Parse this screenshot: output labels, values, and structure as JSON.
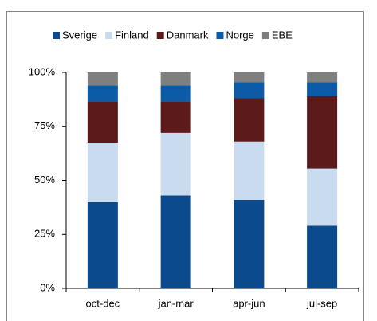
{
  "chart_data": {
    "type": "stacked_bar",
    "categories": [
      "oct-dec",
      "jan-mar",
      "apr-jun",
      "jul-sep"
    ],
    "series": [
      {
        "name": "Sverige",
        "color": "#0b4a8c",
        "values": [
          40,
          43,
          41,
          29
        ]
      },
      {
        "name": "Finland",
        "color": "#c9dcef",
        "values": [
          27.5,
          29,
          27,
          26.5
        ]
      },
      {
        "name": "Danmark",
        "color": "#5c1a1a",
        "values": [
          19,
          14.5,
          20,
          33.5
        ]
      },
      {
        "name": "Norge",
        "color": "#0c5ba8",
        "values": [
          7.5,
          7.5,
          7.5,
          6.5
        ]
      },
      {
        "name": "EBE",
        "color": "#7f7f7f",
        "values": [
          6,
          6,
          4.5,
          4.5
        ]
      }
    ],
    "ylim": [
      0,
      100
    ],
    "yticks": [
      {
        "value": 0,
        "label": "0%"
      },
      {
        "value": 25,
        "label": "25%"
      },
      {
        "value": 50,
        "label": "50%"
      },
      {
        "value": 75,
        "label": "75%"
      },
      {
        "value": 100,
        "label": "100%"
      }
    ],
    "legend": "top"
  }
}
